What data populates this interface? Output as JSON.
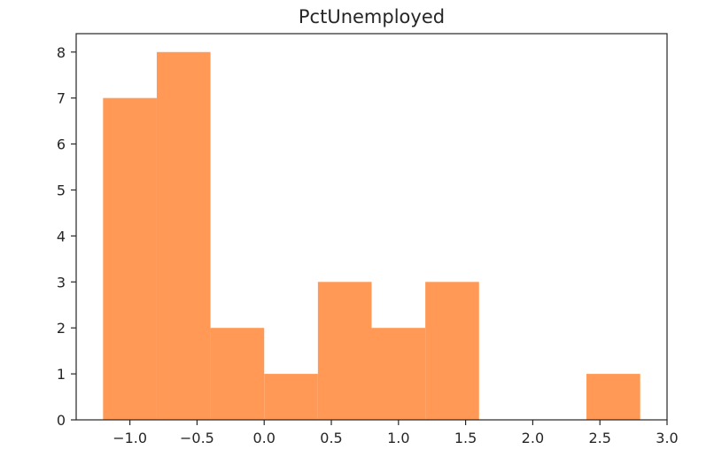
{
  "chart_data": {
    "type": "bar",
    "subtype": "histogram",
    "title": "PctUnemployed",
    "xlabel": "",
    "ylabel": "",
    "bins": [
      {
        "start": -1.2,
        "end": -0.8,
        "count": 7
      },
      {
        "start": -0.8,
        "end": -0.4,
        "count": 8
      },
      {
        "start": -0.4,
        "end": 0.0,
        "count": 2
      },
      {
        "start": 0.0,
        "end": 0.4,
        "count": 1
      },
      {
        "start": 0.4,
        "end": 0.8,
        "count": 3
      },
      {
        "start": 0.8,
        "end": 1.2,
        "count": 2
      },
      {
        "start": 1.2,
        "end": 1.6,
        "count": 3
      },
      {
        "start": 1.6,
        "end": 2.0,
        "count": 0
      },
      {
        "start": 2.0,
        "end": 2.4,
        "count": 0
      },
      {
        "start": 2.4,
        "end": 2.8,
        "count": 1
      }
    ],
    "xlim": [
      -1.4,
      3.0
    ],
    "ylim": [
      0,
      8.4
    ],
    "xticks": [
      {
        "value": -1.0,
        "label": "−1.0"
      },
      {
        "value": -0.5,
        "label": "−0.5"
      },
      {
        "value": 0.0,
        "label": "0.0"
      },
      {
        "value": 0.5,
        "label": "0.5"
      },
      {
        "value": 1.0,
        "label": "1.0"
      },
      {
        "value": 1.5,
        "label": "1.5"
      },
      {
        "value": 2.0,
        "label": "2.0"
      },
      {
        "value": 2.5,
        "label": "2.5"
      },
      {
        "value": 3.0,
        "label": "3.0"
      }
    ],
    "yticks": [
      {
        "value": 0,
        "label": "0"
      },
      {
        "value": 1,
        "label": "1"
      },
      {
        "value": 2,
        "label": "2"
      },
      {
        "value": 3,
        "label": "3"
      },
      {
        "value": 4,
        "label": "4"
      },
      {
        "value": 5,
        "label": "5"
      },
      {
        "value": 6,
        "label": "6"
      },
      {
        "value": 7,
        "label": "7"
      },
      {
        "value": 8,
        "label": "8"
      }
    ],
    "grid": false,
    "legend": "none",
    "colors": {
      "bar": "#ff9955",
      "axis": "#262626"
    }
  }
}
